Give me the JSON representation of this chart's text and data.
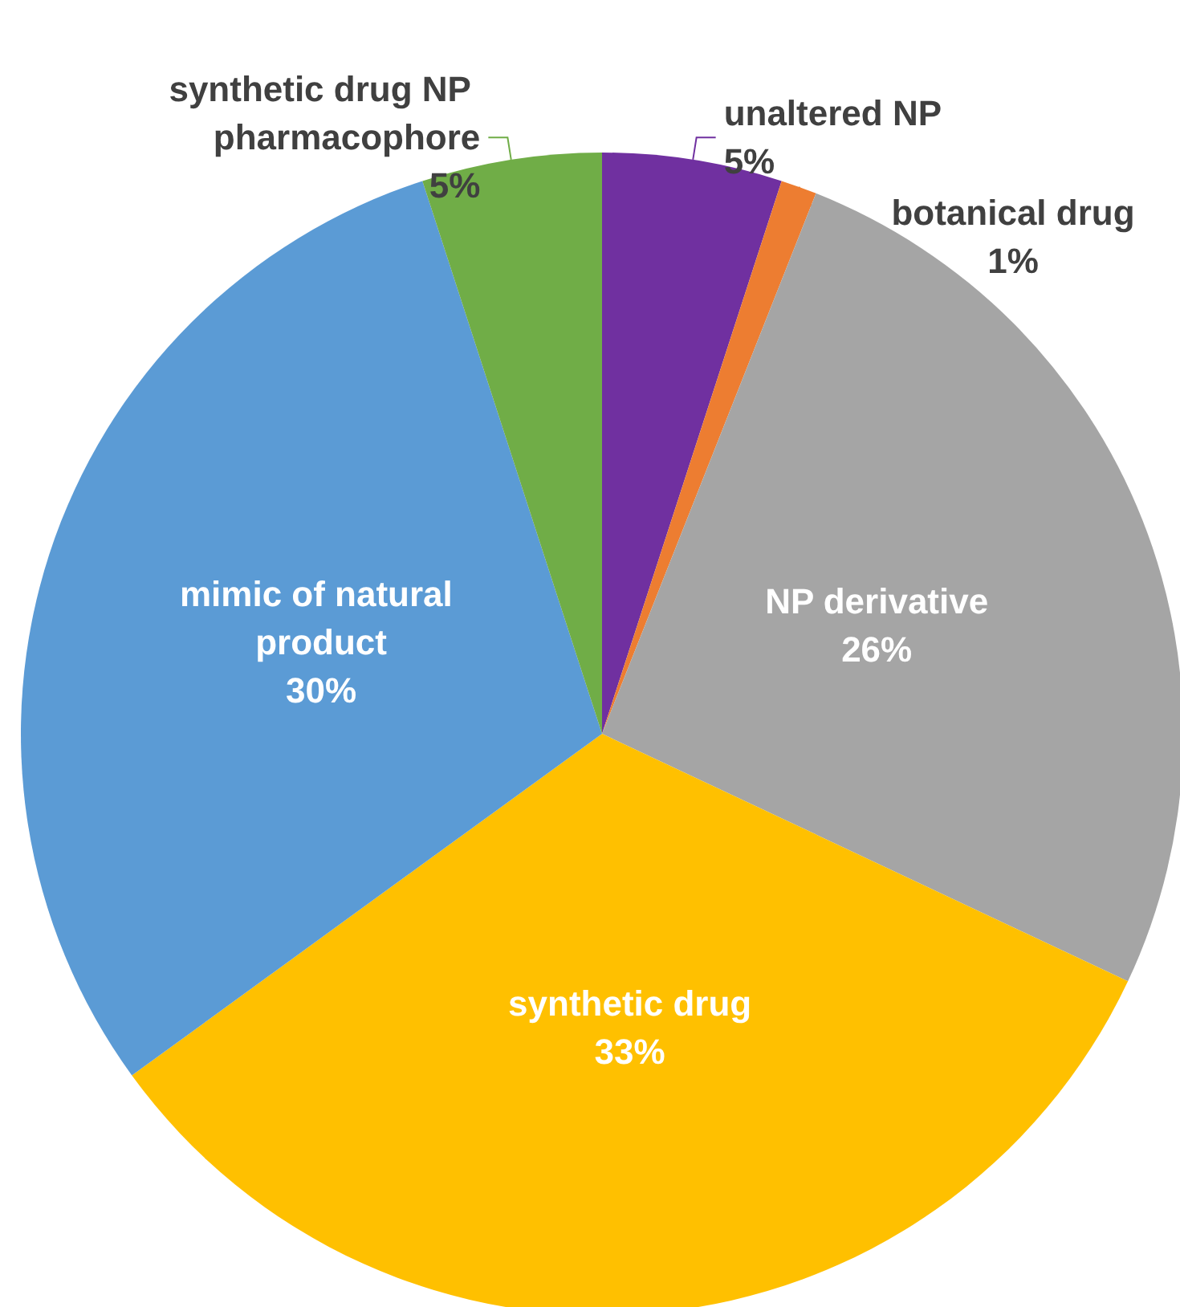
{
  "chart_data": {
    "type": "pie",
    "categories": [
      "unaltered NP",
      "botanical drug",
      "NP derivative",
      "synthetic drug",
      "mimic of natural product",
      "synthetic drug NP pharmacophore"
    ],
    "values": [
      5,
      1,
      26,
      33,
      30,
      5
    ],
    "value_labels": [
      "5%",
      "1%",
      "26%",
      "33%",
      "30%",
      "5%"
    ],
    "colors": [
      "#7030a0",
      "#ed7d31",
      "#a5a5a5",
      "#ffc000",
      "#5b9bd5",
      "#70ad47"
    ]
  }
}
